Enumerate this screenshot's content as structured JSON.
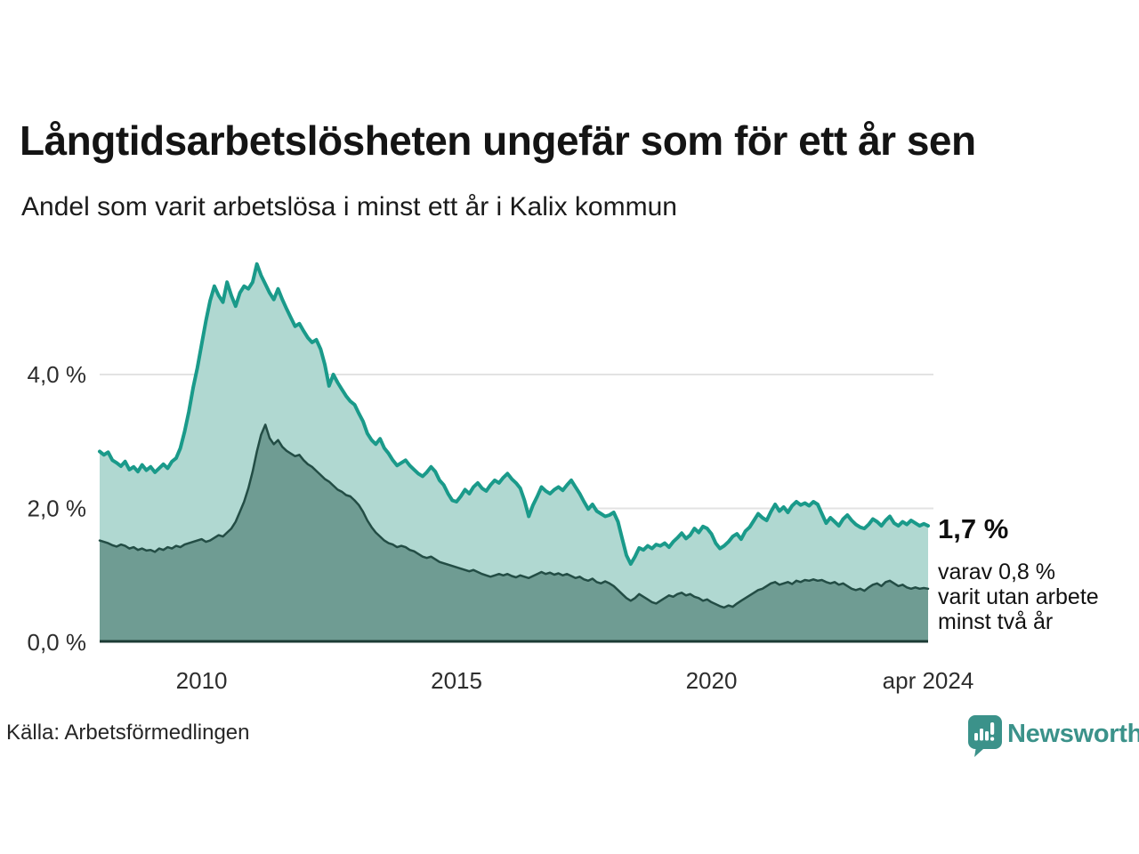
{
  "header": {
    "title": "Långtidsarbetslösheten ungefär som för ett år sen",
    "subtitle": "Andel som varit arbetslösa i minst ett år i Kalix kommun"
  },
  "annotation": {
    "value": "1,7 %",
    "note_lines": [
      "varav 0,8 %",
      "varit utan arbete",
      "minst två år"
    ]
  },
  "source": {
    "label": "Källa: Arbetsförmedlingen"
  },
  "branding": {
    "wordmark": "Newsworthy",
    "logo_icon": "newsworthy-speech-bubble-bars-icon",
    "brand_color": "#3b928a"
  },
  "colors": {
    "gridline": "#e3e3e3",
    "axis_line": "#1c3b35",
    "tick_text": "#2d2d2d",
    "background": "#ffffff"
  },
  "chart_data": {
    "type": "area",
    "title": "Långtidsarbetslösheten ungefär som för ett år sen",
    "subtitle": "Andel som varit arbetslösa i minst ett år i Kalix kommun",
    "unit": "%",
    "grid": true,
    "x_start": 2008.0,
    "x_step": 0.0833333,
    "x_end_label": "apr 2024",
    "ylim": [
      0,
      6
    ],
    "y_ticks": [
      {
        "value": 0,
        "label": "0,0 %"
      },
      {
        "value": 2,
        "label": "2,0 %"
      },
      {
        "value": 4,
        "label": "4,0 %"
      }
    ],
    "x_ticks": [
      {
        "value": 2010,
        "label": "2010"
      },
      {
        "value": 2015,
        "label": "2015"
      },
      {
        "value": 2020,
        "label": "2020"
      },
      {
        "value": 2024.25,
        "label": "apr 2024"
      }
    ],
    "latest": {
      "label": "apr 2024",
      "minst_ett_ar": 1.7,
      "minst_tva_ar": 0.8
    },
    "series": [
      {
        "name": "Andel arbetslösa minst ett år",
        "line_color": "#1a9a8a",
        "fill_color": "#b0d8d1",
        "line_width": 4,
        "values": [
          2.85,
          2.8,
          2.84,
          2.72,
          2.68,
          2.63,
          2.7,
          2.58,
          2.62,
          2.55,
          2.65,
          2.57,
          2.62,
          2.54,
          2.6,
          2.66,
          2.6,
          2.7,
          2.75,
          2.9,
          3.15,
          3.45,
          3.8,
          4.1,
          4.45,
          4.8,
          5.1,
          5.32,
          5.18,
          5.08,
          5.38,
          5.18,
          5.02,
          5.22,
          5.32,
          5.28,
          5.38,
          5.65,
          5.48,
          5.35,
          5.22,
          5.12,
          5.28,
          5.12,
          4.98,
          4.85,
          4.72,
          4.76,
          4.65,
          4.55,
          4.48,
          4.52,
          4.38,
          4.15,
          3.83,
          4.0,
          3.88,
          3.78,
          3.68,
          3.6,
          3.55,
          3.42,
          3.3,
          3.12,
          3.02,
          2.96,
          3.04,
          2.9,
          2.82,
          2.72,
          2.64,
          2.68,
          2.72,
          2.64,
          2.58,
          2.52,
          2.48,
          2.54,
          2.62,
          2.55,
          2.42,
          2.35,
          2.22,
          2.12,
          2.1,
          2.18,
          2.28,
          2.22,
          2.32,
          2.38,
          2.3,
          2.26,
          2.35,
          2.42,
          2.38,
          2.46,
          2.52,
          2.44,
          2.38,
          2.3,
          2.12,
          1.88,
          2.05,
          2.18,
          2.32,
          2.26,
          2.22,
          2.28,
          2.32,
          2.27,
          2.35,
          2.42,
          2.32,
          2.22,
          2.1,
          1.99,
          2.06,
          1.96,
          1.92,
          1.88,
          1.9,
          1.94,
          1.8,
          1.55,
          1.3,
          1.17,
          1.28,
          1.41,
          1.38,
          1.44,
          1.4,
          1.46,
          1.44,
          1.48,
          1.42,
          1.5,
          1.56,
          1.63,
          1.55,
          1.6,
          1.7,
          1.64,
          1.73,
          1.7,
          1.62,
          1.48,
          1.4,
          1.44,
          1.5,
          1.58,
          1.62,
          1.54,
          1.66,
          1.72,
          1.82,
          1.92,
          1.86,
          1.82,
          1.95,
          2.06,
          1.96,
          2.02,
          1.94,
          2.04,
          2.1,
          2.05,
          2.08,
          2.04,
          2.1,
          2.06,
          1.92,
          1.78,
          1.86,
          1.8,
          1.74,
          1.84,
          1.9,
          1.82,
          1.76,
          1.72,
          1.7,
          1.76,
          1.84,
          1.8,
          1.74,
          1.82,
          1.88,
          1.78,
          1.74,
          1.8,
          1.76,
          1.82,
          1.78,
          1.74,
          1.77,
          1.74
        ]
      },
      {
        "name": "varav utan arbete minst två år",
        "line_color": "#234d45",
        "fill_color": "#6f9c93",
        "line_width": 2.5,
        "values": [
          1.52,
          1.5,
          1.48,
          1.45,
          1.43,
          1.46,
          1.44,
          1.4,
          1.42,
          1.38,
          1.4,
          1.37,
          1.38,
          1.35,
          1.4,
          1.38,
          1.42,
          1.4,
          1.44,
          1.42,
          1.46,
          1.48,
          1.5,
          1.52,
          1.54,
          1.5,
          1.52,
          1.56,
          1.6,
          1.58,
          1.64,
          1.7,
          1.8,
          1.95,
          2.1,
          2.3,
          2.55,
          2.85,
          3.1,
          3.25,
          3.05,
          2.96,
          3.02,
          2.92,
          2.86,
          2.82,
          2.78,
          2.8,
          2.72,
          2.66,
          2.62,
          2.56,
          2.5,
          2.44,
          2.4,
          2.34,
          2.28,
          2.25,
          2.2,
          2.18,
          2.12,
          2.05,
          1.95,
          1.82,
          1.72,
          1.64,
          1.58,
          1.52,
          1.48,
          1.46,
          1.42,
          1.44,
          1.42,
          1.38,
          1.36,
          1.32,
          1.28,
          1.26,
          1.28,
          1.24,
          1.2,
          1.18,
          1.16,
          1.14,
          1.12,
          1.1,
          1.08,
          1.06,
          1.08,
          1.05,
          1.02,
          1.0,
          0.98,
          1.0,
          1.02,
          1.0,
          1.02,
          0.99,
          0.97,
          1.0,
          0.98,
          0.96,
          0.99,
          1.02,
          1.05,
          1.02,
          1.04,
          1.01,
          1.03,
          1.0,
          1.02,
          0.99,
          0.96,
          0.98,
          0.94,
          0.92,
          0.95,
          0.9,
          0.88,
          0.91,
          0.88,
          0.84,
          0.78,
          0.72,
          0.66,
          0.62,
          0.66,
          0.72,
          0.68,
          0.64,
          0.6,
          0.58,
          0.62,
          0.66,
          0.7,
          0.68,
          0.72,
          0.74,
          0.7,
          0.72,
          0.68,
          0.66,
          0.62,
          0.64,
          0.6,
          0.57,
          0.54,
          0.52,
          0.55,
          0.53,
          0.58,
          0.62,
          0.66,
          0.7,
          0.74,
          0.78,
          0.8,
          0.84,
          0.88,
          0.9,
          0.86,
          0.88,
          0.9,
          0.87,
          0.92,
          0.9,
          0.93,
          0.92,
          0.94,
          0.92,
          0.93,
          0.9,
          0.88,
          0.9,
          0.86,
          0.88,
          0.84,
          0.8,
          0.78,
          0.8,
          0.77,
          0.82,
          0.86,
          0.88,
          0.84,
          0.9,
          0.92,
          0.88,
          0.84,
          0.86,
          0.82,
          0.8,
          0.82,
          0.8,
          0.81,
          0.8
        ]
      }
    ]
  }
}
